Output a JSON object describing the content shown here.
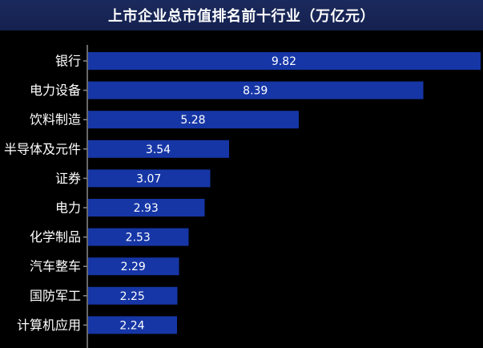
{
  "chart_data": {
    "type": "bar",
    "orientation": "horizontal",
    "title": "上市企业总市值排名前十行业（万亿元）",
    "categories": [
      "银行",
      "电力设备",
      "饮料制造",
      "半导体及元件",
      "证券",
      "电力",
      "化学制品",
      "汽车整车",
      "国防军工",
      "计算机应用"
    ],
    "values": [
      9.82,
      8.39,
      5.28,
      3.54,
      3.07,
      2.93,
      2.53,
      2.29,
      2.25,
      2.24
    ],
    "value_labels": [
      "9.82",
      "8.39",
      "5.28",
      "3.54",
      "3.07",
      "2.93",
      "2.53",
      "2.29",
      "2.25",
      "2.24"
    ],
    "xlim": [
      0,
      9.82
    ],
    "grid": false,
    "legend": "none",
    "colors": {
      "bar": "#1636a6",
      "background": "#000000",
      "title_bar": "#17245a",
      "axis": "#8a8a8a",
      "text": "#ffffff"
    }
  }
}
